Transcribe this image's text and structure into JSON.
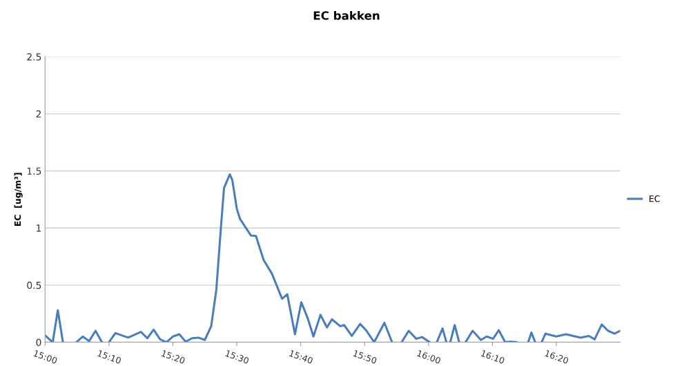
{
  "chart_data": {
    "type": "line",
    "title": "EC bakken",
    "ylabel": "EC  [ug/m³]",
    "x": [
      15.0,
      15.02,
      15.0333,
      15.0467,
      15.0583,
      15.0817,
      15.0983,
      15.115,
      15.1317,
      15.1483,
      15.1583,
      15.1667,
      15.1833,
      15.2167,
      15.25,
      15.2667,
      15.2833,
      15.3,
      15.3167,
      15.3333,
      15.35,
      15.3667,
      15.3833,
      15.4,
      15.4167,
      15.4333,
      15.4467,
      15.4583,
      15.4667,
      15.4817,
      15.4883,
      15.5,
      15.5083,
      15.5367,
      15.55,
      15.57,
      15.5917,
      15.6133,
      15.6183,
      15.6317,
      15.6517,
      15.6683,
      15.685,
      15.7,
      15.7183,
      15.735,
      15.7483,
      15.77,
      15.78,
      15.8,
      15.8217,
      15.8383,
      15.8583,
      15.885,
      15.905,
      15.9167,
      15.93,
      15.9483,
      15.9683,
      15.9833,
      16.0033,
      16.0133,
      16.0217,
      16.0367,
      16.0467,
      16.0517,
      16.0567,
      16.0683,
      16.08,
      16.0883,
      16.0967,
      16.115,
      16.1367,
      16.1517,
      16.1683,
      16.1833,
      16.2,
      16.2133,
      16.23,
      16.245,
      16.26,
      16.2683,
      16.2783,
      16.2867,
      16.295,
      16.305,
      16.3333,
      16.3583,
      16.3967,
      16.4183,
      16.4333,
      16.4517,
      16.4683,
      16.485,
      16.5
    ],
    "series": [
      {
        "name": "EC",
        "color": "#4a7ebb",
        "values": [
          0.06,
          0,
          0.28,
          0,
          null,
          0,
          0.05,
          0.01,
          0.1,
          0,
          null,
          0,
          0.08,
          0.04,
          0.09,
          0.035,
          0.11,
          0.025,
          0,
          0.05,
          0.07,
          0.005,
          0.035,
          0.04,
          0.02,
          0.14,
          0.46,
          0.99,
          1.35,
          1.47,
          1.42,
          1.17,
          1.08,
          0.935,
          0.93,
          0.72,
          0.6,
          0.42,
          0.38,
          0.42,
          0.07,
          0.35,
          0.21,
          0.05,
          0.24,
          0.13,
          0.2,
          0.14,
          0.15,
          0.055,
          0.16,
          0.1,
          0,
          0.17,
          0,
          null,
          0,
          0.1,
          0.03,
          0.045,
          0,
          null,
          0,
          0.12,
          0,
          null,
          0,
          0.15,
          0,
          null,
          0,
          0.1,
          0.02,
          0.05,
          0.03,
          0.105,
          0,
          0.005,
          0,
          null,
          0,
          0.085,
          0,
          null,
          0,
          0.075,
          0.05,
          0.07,
          0.04,
          0.055,
          0.025,
          0.155,
          0.1,
          0.075,
          0.1
        ]
      }
    ],
    "xlim": [
      15.0,
      16.5
    ],
    "xticks": [
      {
        "value": 15.0,
        "label": "15:00"
      },
      {
        "value": 15.1667,
        "label": "15:10"
      },
      {
        "value": 15.3333,
        "label": "15:20"
      },
      {
        "value": 15.5,
        "label": "15:30"
      },
      {
        "value": 15.6667,
        "label": "15:40"
      },
      {
        "value": 15.8333,
        "label": "15:50"
      },
      {
        "value": 16.0,
        "label": "16:00"
      },
      {
        "value": 16.1667,
        "label": "16:10"
      },
      {
        "value": 16.3333,
        "label": "16:20"
      }
    ],
    "ylim": [
      0,
      2.5
    ],
    "yticks": [
      0,
      0.5,
      1,
      1.5,
      2,
      2.5
    ],
    "grid": "y",
    "legend": "right",
    "marker": "none",
    "line_style": "solid"
  }
}
